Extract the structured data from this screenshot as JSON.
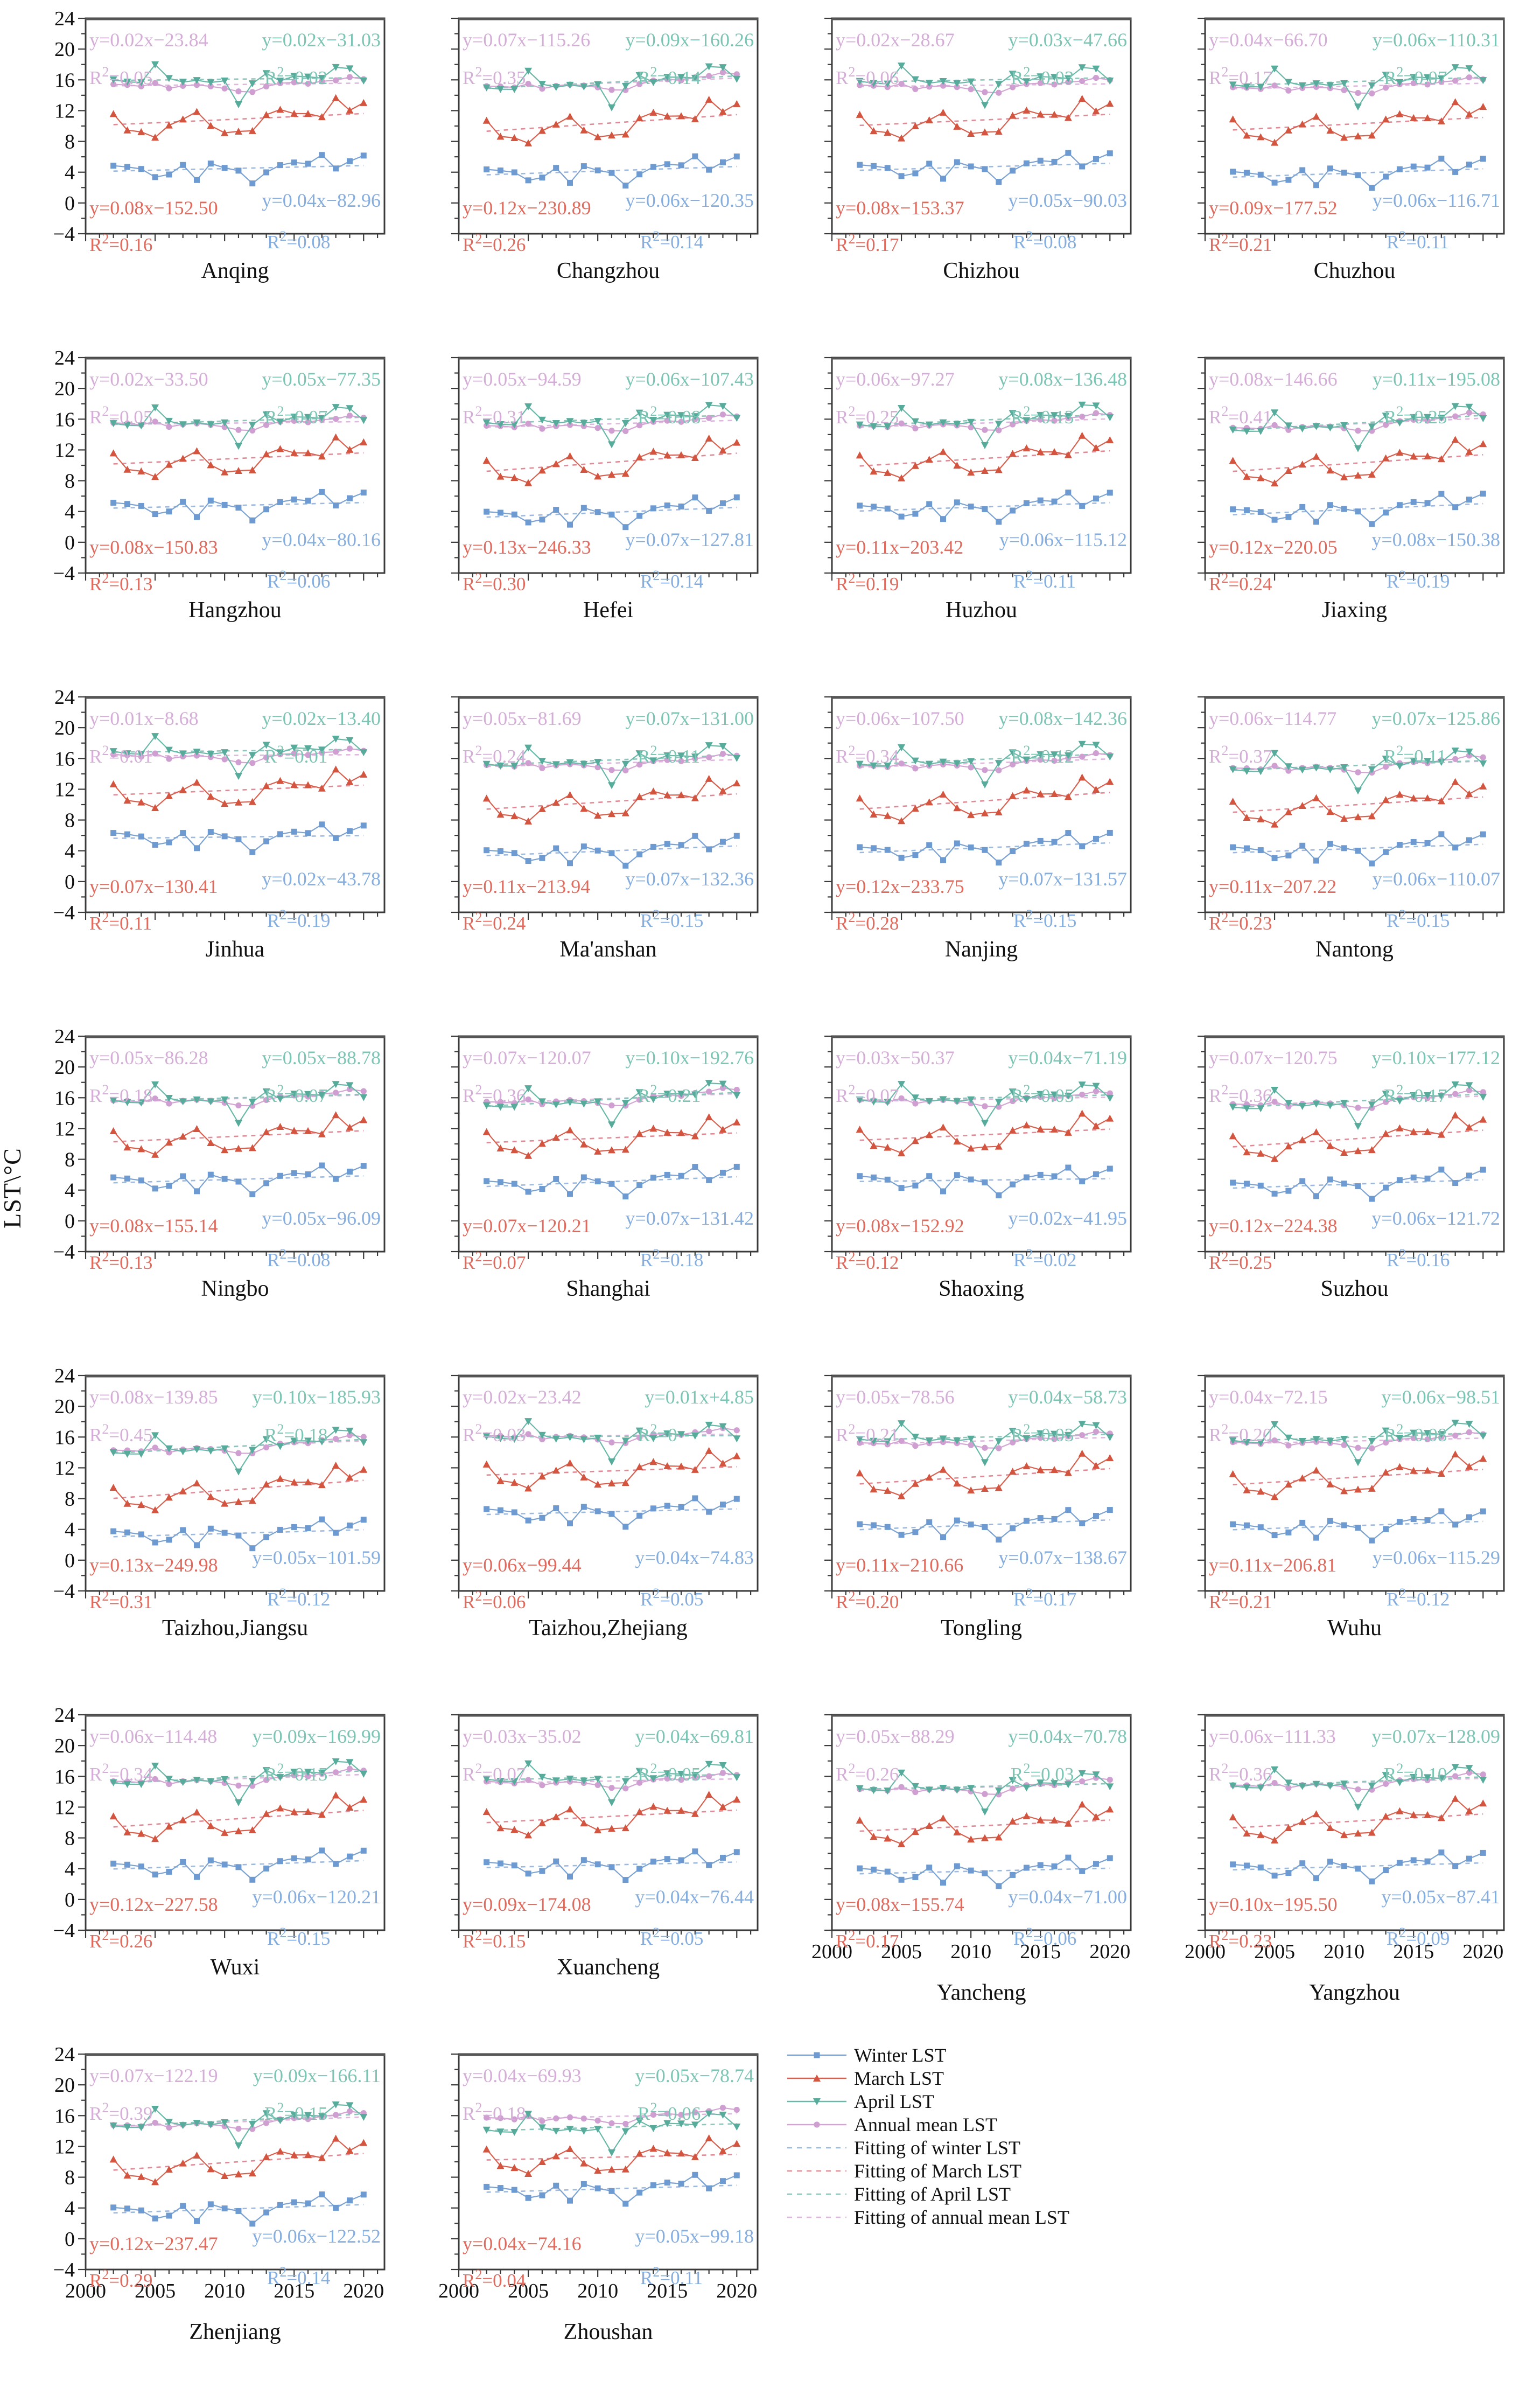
{
  "figure": {
    "ylabel": "LST\\°C",
    "y_range": [
      -4,
      24
    ],
    "y_major_ticks": [
      -4,
      0,
      4,
      8,
      12,
      16,
      20,
      24
    ],
    "x_range": [
      2000,
      2021.5
    ],
    "x_major_ticks": [
      2000,
      2005,
      2010,
      2015,
      2020
    ],
    "frame_color": "#3a3a3a",
    "tick_label_color": "#111111"
  },
  "legend": {
    "items": [
      {
        "key": "winter",
        "label": "Winter LST",
        "type": "series"
      },
      {
        "key": "march",
        "label": "March LST",
        "type": "series"
      },
      {
        "key": "april",
        "label": "April LST",
        "type": "series"
      },
      {
        "key": "annual",
        "label": "Annual mean LST",
        "type": "series"
      },
      {
        "key": "winter",
        "label": "Fitting of winter LST",
        "type": "fit"
      },
      {
        "key": "march",
        "label": "Fitting of March LST",
        "type": "fit"
      },
      {
        "key": "april",
        "label": "Fitting of April LST",
        "type": "fit"
      },
      {
        "key": "annual",
        "label": "Fitting of annual mean LST",
        "type": "fit"
      }
    ]
  },
  "chart_data": {
    "type": "line",
    "xlabel": "",
    "ylabel": "LST\\°C",
    "ylim": [
      -4,
      24
    ],
    "xlim": [
      2000,
      2021.5
    ],
    "years": [
      2002,
      2003,
      2004,
      2005,
      2006,
      2007,
      2008,
      2009,
      2010,
      2011,
      2012,
      2013,
      2014,
      2015,
      2016,
      2017,
      2018,
      2019,
      2020
    ],
    "series_meta": {
      "winter": {
        "label": "Winter LST",
        "marker": "square",
        "line": "#7ba2d0",
        "fill": "#6d9bd1",
        "fit": "#9db9dd",
        "text": "#85aede"
      },
      "march": {
        "label": "March LST",
        "marker": "tri-up",
        "line": "#d8604f",
        "fill": "#d4553f",
        "fit": "#e08a96",
        "text": "#de6b5e"
      },
      "april": {
        "label": "April LST",
        "marker": "tri-down",
        "line": "#69b9a9",
        "fill": "#57ab9b",
        "fit": "#8cc6bb",
        "text": "#7cc5b4"
      },
      "annual": {
        "label": "Annual mean LST",
        "marker": "circle",
        "line": "#d4a5d4",
        "fill": "#cf9fd2",
        "fit": "#ddb7de",
        "text": "#d5aed8"
      }
    },
    "shapes": {
      "winter": [
        0.7,
        0.5,
        0.2,
        -0.9,
        -0.6,
        0.6,
        -1.4,
        0.7,
        0.1,
        -0.3,
        -2.0,
        -0.6,
        0.3,
        0.6,
        0.4,
        1.5,
        -0.3,
        0.6,
        1.3
      ],
      "march": [
        1.4,
        -0.8,
        -1.1,
        -1.9,
        -0.4,
        0.3,
        1.2,
        -0.7,
        -1.7,
        -1.6,
        -1.6,
        0.4,
        1.0,
        0.4,
        0.3,
        -0.2,
        2.2,
        0.5,
        1.4
      ],
      "april": [
        0.1,
        -0.2,
        -0.3,
        2.0,
        0.2,
        -0.3,
        -0.1,
        -0.4,
        -0.2,
        -3.3,
        -0.6,
        0.7,
        -0.3,
        0.3,
        0.2,
        0.0,
        1.4,
        1.2,
        -0.4
      ],
      "annual": [
        0.2,
        0.1,
        -0.1,
        0.3,
        -0.4,
        -0.1,
        0.0,
        -0.2,
        -0.5,
        -0.9,
        -1.0,
        -0.3,
        0.1,
        0.2,
        0.0,
        0.3,
        0.4,
        0.8,
        0.5
      ]
    },
    "panels": [
      {
        "name": "Anqing",
        "annual": {
          "eq": "y=0.02x−23.84",
          "r2": "0.05"
        },
        "april": {
          "eq": "y=0.02x−31.03",
          "r2": "0.02"
        },
        "march": {
          "eq": "y=0.08x−152.50",
          "r2": "0.16"
        },
        "winter": {
          "eq": "y=0.04x−82.96",
          "r2": "0.08"
        },
        "means": {
          "winter": 4.5,
          "march": 10.9,
          "april": 16.1,
          "annual": 15.4
        }
      },
      {
        "name": "Changzhou",
        "annual": {
          "eq": "y=0.07x−115.26",
          "r2": "0.35"
        },
        "april": {
          "eq": "y=0.09x−160.26",
          "r2": "0.14"
        },
        "march": {
          "eq": "y=0.12x−230.89",
          "r2": "0.26"
        },
        "winter": {
          "eq": "y=0.06x−120.35",
          "r2": "0.14"
        },
        "means": {
          "winter": 4.2,
          "march": 10.4,
          "april": 15.7,
          "annual": 15.6
        }
      },
      {
        "name": "Chizhou",
        "annual": {
          "eq": "y=0.02x−28.67",
          "r2": "0.06"
        },
        "april": {
          "eq": "y=0.03x−47.66",
          "r2": "0.03"
        },
        "march": {
          "eq": "y=0.08x−153.37",
          "r2": "0.17"
        },
        "winter": {
          "eq": "y=0.05x−90.03",
          "r2": "0.08"
        },
        "means": {
          "winter": 4.7,
          "march": 10.8,
          "april": 16.0,
          "annual": 15.3
        }
      },
      {
        "name": "Chuzhou",
        "annual": {
          "eq": "y=0.04x−66.70",
          "r2": "0.17"
        },
        "april": {
          "eq": "y=0.06x−110.31",
          "r2": "0.07"
        },
        "march": {
          "eq": "y=0.09x−177.52",
          "r2": "0.21"
        },
        "winter": {
          "eq": "y=0.06x−116.71",
          "r2": "0.11"
        },
        "means": {
          "winter": 3.9,
          "march": 10.3,
          "april": 15.8,
          "annual": 15.2
        }
      },
      {
        "name": "Hangzhou",
        "annual": {
          "eq": "y=0.02x−33.50",
          "r2": "0.05"
        },
        "april": {
          "eq": "y=0.05x−77.35",
          "r2": "0.07"
        },
        "march": {
          "eq": "y=0.08x−150.83",
          "r2": "0.13"
        },
        "winter": {
          "eq": "y=0.04x−80.16",
          "r2": "0.06"
        },
        "means": {
          "winter": 4.8,
          "march": 10.9,
          "april": 15.8,
          "annual": 15.5
        }
      },
      {
        "name": "Hefei",
        "annual": {
          "eq": "y=0.05x−94.59",
          "r2": "0.31"
        },
        "april": {
          "eq": "y=0.06x−107.43",
          "r2": "0.08"
        },
        "march": {
          "eq": "y=0.13x−246.33",
          "r2": "0.30"
        },
        "winter": {
          "eq": "y=0.07x−127.81",
          "r2": "0.14"
        },
        "means": {
          "winter": 3.9,
          "march": 10.4,
          "april": 16.0,
          "annual": 15.4
        }
      },
      {
        "name": "Huzhou",
        "annual": {
          "eq": "y=0.06x−97.27",
          "r2": "0.25"
        },
        "april": {
          "eq": "y=0.08x−136.48",
          "r2": "0.13"
        },
        "march": {
          "eq": "y=0.11x−203.42",
          "r2": "0.19"
        },
        "winter": {
          "eq": "y=0.06x−115.12",
          "r2": "0.11"
        },
        "means": {
          "winter": 4.6,
          "march": 10.9,
          "april": 15.9,
          "annual": 15.5
        }
      },
      {
        "name": "Jiaxing",
        "annual": {
          "eq": "y=0.08x−146.66",
          "r2": "0.41"
        },
        "april": {
          "eq": "y=0.11x−195.08",
          "r2": "0.25"
        },
        "march": {
          "eq": "y=0.12x−220.05",
          "r2": "0.24"
        },
        "winter": {
          "eq": "y=0.08x−150.38",
          "r2": "0.19"
        },
        "means": {
          "winter": 4.3,
          "march": 10.3,
          "april": 15.5,
          "annual": 15.4
        }
      },
      {
        "name": "Jinhua",
        "annual": {
          "eq": "y=0.01x−8.68",
          "r2": "0.01"
        },
        "april": {
          "eq": "y=0.02x−13.40",
          "r2": "0.01"
        },
        "march": {
          "eq": "y=0.07x−130.41",
          "r2": "0.11"
        },
        "winter": {
          "eq": "y=0.02x−43.78",
          "r2": "0.19"
        },
        "means": {
          "winter": 5.8,
          "march": 11.9,
          "april": 17.0,
          "annual": 16.4
        }
      },
      {
        "name": "Ma'anshan",
        "annual": {
          "eq": "y=0.05x−81.69",
          "r2": "0.24"
        },
        "april": {
          "eq": "y=0.07x−131.00",
          "r2": "0.11"
        },
        "march": {
          "eq": "y=0.11x−213.94",
          "r2": "0.24"
        },
        "winter": {
          "eq": "y=0.07x−132.36",
          "r2": "0.15"
        },
        "means": {
          "winter": 4.0,
          "march": 10.4,
          "april": 15.8,
          "annual": 15.4
        }
      },
      {
        "name": "Nanjing",
        "annual": {
          "eq": "y=0.06x−107.50",
          "r2": "0.34"
        },
        "april": {
          "eq": "y=0.08x−142.36",
          "r2": "0.12"
        },
        "march": {
          "eq": "y=0.12x−233.75",
          "r2": "0.28"
        },
        "winter": {
          "eq": "y=0.07x−131.57",
          "r2": "0.15"
        },
        "means": {
          "winter": 4.4,
          "march": 10.5,
          "april": 15.9,
          "annual": 15.4
        }
      },
      {
        "name": "Nantong",
        "annual": {
          "eq": "y=0.06x−114.77",
          "r2": "0.37"
        },
        "april": {
          "eq": "y=0.07x−125.86",
          "r2": "0.11"
        },
        "march": {
          "eq": "y=0.11x−207.22",
          "r2": "0.23"
        },
        "winter": {
          "eq": "y=0.06x−110.07",
          "r2": "0.15"
        },
        "means": {
          "winter": 4.3,
          "march": 10.0,
          "april": 15.1,
          "annual": 15.1
        }
      },
      {
        "name": "Ningbo",
        "annual": {
          "eq": "y=0.05x−86.28",
          "r2": "0.18"
        },
        "april": {
          "eq": "y=0.05x−88.78",
          "r2": "0.07"
        },
        "march": {
          "eq": "y=0.08x−155.14",
          "r2": "0.13"
        },
        "winter": {
          "eq": "y=0.05x−96.09",
          "r2": "0.08"
        },
        "means": {
          "winter": 5.4,
          "march": 11.0,
          "april": 16.0,
          "annual": 15.9
        }
      },
      {
        "name": "Shanghai",
        "annual": {
          "eq": "y=0.07x−120.07",
          "r2": "0.36"
        },
        "april": {
          "eq": "y=0.10x−192.76",
          "r2": "0.21"
        },
        "march": {
          "eq": "y=0.07x−120.21",
          "r2": "0.07"
        },
        "winter": {
          "eq": "y=0.07x−131.42",
          "r2": "0.18"
        },
        "means": {
          "winter": 5.1,
          "march": 10.8,
          "april": 15.8,
          "annual": 15.9
        }
      },
      {
        "name": "Shaoxing",
        "annual": {
          "eq": "y=0.03x−50.37",
          "r2": "0.07"
        },
        "april": {
          "eq": "y=0.04x−71.19",
          "r2": "0.05"
        },
        "march": {
          "eq": "y=0.08x−152.92",
          "r2": "0.12"
        },
        "winter": {
          "eq": "y=0.02x−41.95",
          "r2": "0.02"
        },
        "means": {
          "winter": 5.3,
          "march": 11.2,
          "april": 16.0,
          "annual": 15.8
        }
      },
      {
        "name": "Suzhou",
        "annual": {
          "eq": "y=0.07x−120.75",
          "r2": "0.36"
        },
        "april": {
          "eq": "y=0.10x−177.12",
          "r2": "0.17"
        },
        "march": {
          "eq": "y=0.12x−224.38",
          "r2": "0.25"
        },
        "winter": {
          "eq": "y=0.06x−121.72",
          "r2": "0.16"
        },
        "means": {
          "winter": 4.8,
          "march": 10.7,
          "april": 15.6,
          "annual": 15.6
        }
      },
      {
        "name": "Taizhou,Jiangsu",
        "annual": {
          "eq": "y=0.08x−139.85",
          "r2": "0.45"
        },
        "april": {
          "eq": "y=0.10x−185.93",
          "r2": "0.18"
        },
        "march": {
          "eq": "y=0.13x−249.98",
          "r2": "0.31"
        },
        "winter": {
          "eq": "y=0.05x−101.59",
          "r2": "0.12"
        },
        "means": {
          "winter": 3.5,
          "march": 9.2,
          "april": 14.8,
          "annual": 14.8
        }
      },
      {
        "name": "Taizhou,Zhejiang",
        "annual": {
          "eq": "y=0.02x−23.42",
          "r2": "0.03"
        },
        "april": {
          "eq": "y=0.01x+4.85",
          "r2": "0"
        },
        "march": {
          "eq": "y=0.06x−99.44",
          "r2": "0.06"
        },
        "winter": {
          "eq": "y=0.04x−74.83",
          "r2": "0.05"
        },
        "means": {
          "winter": 6.3,
          "march": 11.6,
          "april": 16.1,
          "annual": 16.2
        }
      },
      {
        "name": "Tongling",
        "annual": {
          "eq": "y=0.05x−78.56",
          "r2": "0.21"
        },
        "april": {
          "eq": "y=0.04x−58.73",
          "r2": "0.03"
        },
        "march": {
          "eq": "y=0.11x−210.66",
          "r2": "0.20"
        },
        "winter": {
          "eq": "y=0.07x−138.67",
          "r2": "0.17"
        },
        "means": {
          "winter": 4.6,
          "march": 10.9,
          "april": 16.0,
          "annual": 15.5
        }
      },
      {
        "name": "Wuhu",
        "annual": {
          "eq": "y=0.04x−72.15",
          "r2": "0.20"
        },
        "april": {
          "eq": "y=0.06x−98.51",
          "r2": "0.08"
        },
        "march": {
          "eq": "y=0.11x−206.81",
          "r2": "0.21"
        },
        "winter": {
          "eq": "y=0.06x−115.29",
          "r2": "0.12"
        },
        "means": {
          "winter": 4.5,
          "march": 10.8,
          "april": 16.0,
          "annual": 15.5
        }
      },
      {
        "name": "Wuxi",
        "annual": {
          "eq": "y=0.06x−114.48",
          "r2": "0.34"
        },
        "april": {
          "eq": "y=0.09x−169.99",
          "r2": "0.15"
        },
        "march": {
          "eq": "y=0.12x−227.58",
          "r2": "0.26"
        },
        "winter": {
          "eq": "y=0.06x−120.21",
          "r2": "0.15"
        },
        "means": {
          "winter": 4.5,
          "march": 10.5,
          "april": 15.9,
          "annual": 15.7
        }
      },
      {
        "name": "Xuancheng",
        "annual": {
          "eq": "y=0.03x−35.02",
          "r2": "0.07"
        },
        "april": {
          "eq": "y=0.04x−69.81",
          "r2": "0.05"
        },
        "march": {
          "eq": "y=0.09x−174.08",
          "r2": "0.15"
        },
        "winter": {
          "eq": "y=0.04x−76.44",
          "r2": "0.05"
        },
        "means": {
          "winter": 4.5,
          "march": 10.8,
          "april": 15.9,
          "annual": 15.4
        }
      },
      {
        "name": "Yancheng",
        "annual": {
          "eq": "y=0.05x−88.29",
          "r2": "0.26"
        },
        "april": {
          "eq": "y=0.04x−70.78",
          "r2": "0.03"
        },
        "march": {
          "eq": "y=0.08x−155.74",
          "r2": "0.17"
        },
        "winter": {
          "eq": "y=0.04x−71.00",
          "r2": "0.06"
        },
        "means": {
          "winter": 3.7,
          "march": 9.6,
          "april": 14.7,
          "annual": 14.6
        }
      },
      {
        "name": "Yangzhou",
        "annual": {
          "eq": "y=0.06x−111.33",
          "r2": "0.36"
        },
        "april": {
          "eq": "y=0.07x−128.09",
          "r2": "0.10"
        },
        "march": {
          "eq": "y=0.10x−195.50",
          "r2": "0.23"
        },
        "winter": {
          "eq": "y=0.05x−87.41",
          "r2": "0.09"
        },
        "means": {
          "winter": 4.3,
          "march": 10.2,
          "april": 15.3,
          "annual": 15.2
        }
      },
      {
        "name": "Zhenjiang",
        "annual": {
          "eq": "y=0.07x−122.19",
          "r2": "0.39"
        },
        "april": {
          "eq": "y=0.09x−166.11",
          "r2": "0.15"
        },
        "march": {
          "eq": "y=0.12x−237.47",
          "r2": "0.29"
        },
        "winter": {
          "eq": "y=0.06x−122.52",
          "r2": "0.14"
        },
        "means": {
          "winter": 3.9,
          "march": 10.0,
          "april": 15.4,
          "annual": 15.2
        }
      },
      {
        "name": "Zhoushan",
        "annual": {
          "eq": "y=0.04x−69.93",
          "r2": "0.18"
        },
        "april": {
          "eq": "y=0.05x−78.74",
          "r2": "0.06"
        },
        "march": {
          "eq": "y=0.04x−74.16",
          "r2": "0.04"
        },
        "winter": {
          "eq": "y=0.05x−99.18",
          "r2": "0.11"
        },
        "means": {
          "winter": 6.5,
          "march": 10.6,
          "april": 14.5,
          "annual": 15.9
        }
      }
    ]
  }
}
